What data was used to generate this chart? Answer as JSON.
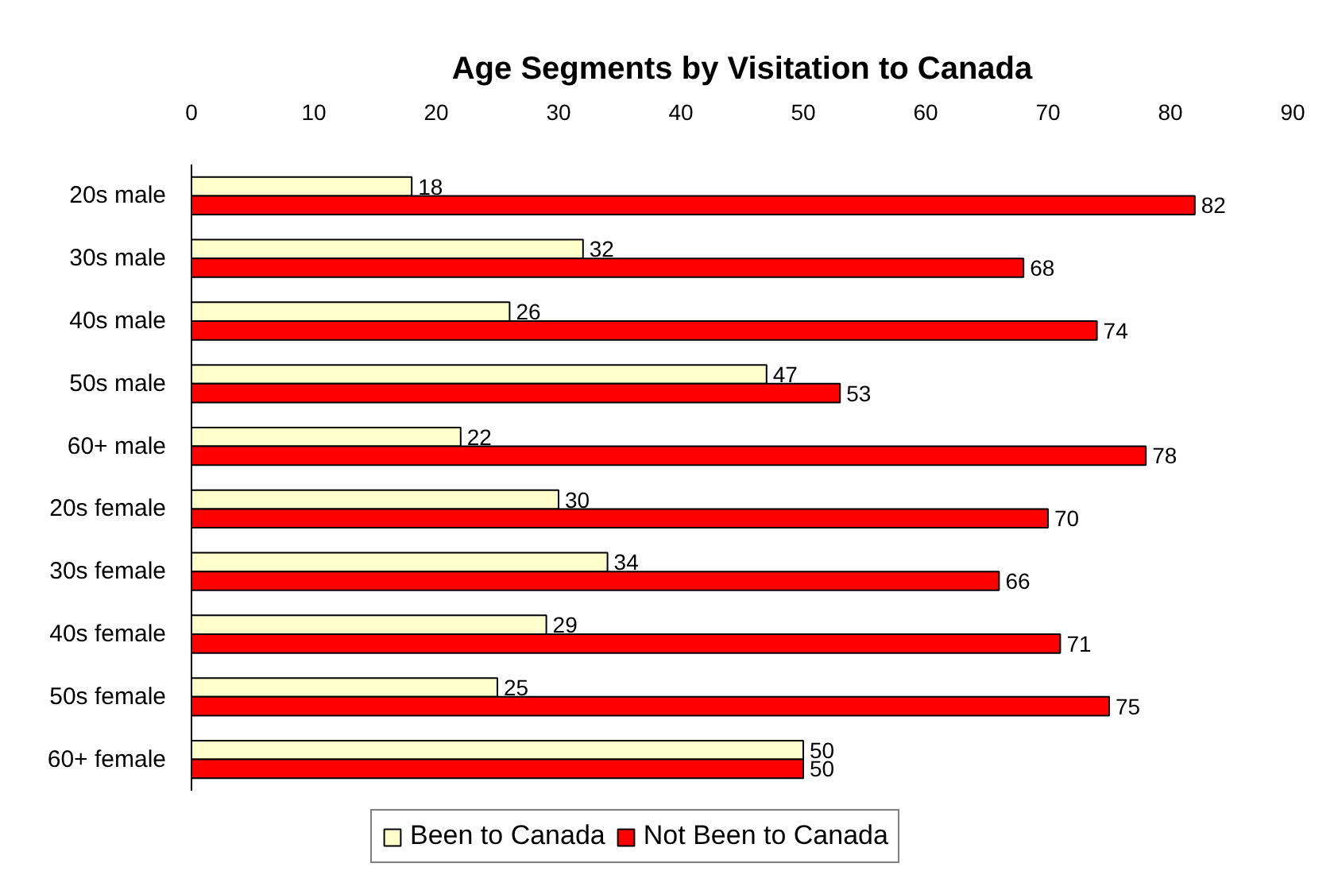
{
  "chart_data": {
    "type": "bar",
    "orientation": "horizontal",
    "title": "Age Segments by Visitation to Canada",
    "categories": [
      "20s male",
      "30s male",
      "40s male",
      "50s male",
      "60+ male",
      "20s female",
      "30s female",
      "40s female",
      "50s female",
      "60+ female"
    ],
    "series": [
      {
        "name": "Been to Canada",
        "color": "#ffffcc",
        "values": [
          18,
          32,
          26,
          47,
          22,
          30,
          34,
          29,
          25,
          50
        ]
      },
      {
        "name": "Not Been to Canada",
        "color": "#ff0000",
        "values": [
          82,
          68,
          74,
          53,
          78,
          70,
          66,
          71,
          75,
          50
        ]
      }
    ],
    "xlim": [
      0,
      90
    ],
    "xticks": [
      0,
      10,
      20,
      30,
      40,
      50,
      60,
      70,
      80,
      90
    ],
    "data_labels": true,
    "legend": "bottom"
  }
}
